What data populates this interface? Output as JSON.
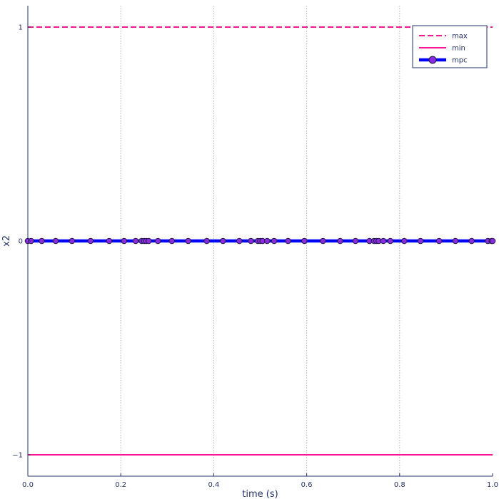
{
  "chart_data": {
    "type": "line",
    "title": "",
    "xlabel": "time (s)",
    "ylabel": "x2",
    "xlim": [
      0,
      1
    ],
    "ylim": [
      -1.1,
      1.1
    ],
    "x_ticks": [
      0,
      0.2,
      0.4,
      0.6,
      0.8,
      1.0
    ],
    "x_tick_labels": [
      "0.0",
      "0.2",
      "0.4",
      "0.6",
      "0.8",
      "1.0"
    ],
    "y_ticks": [
      -1,
      0,
      1
    ],
    "y_tick_labels": [
      "−1",
      "0",
      "1"
    ],
    "grid": {
      "x": true,
      "y": false
    },
    "legend": {
      "placement": "top-right"
    },
    "series": [
      {
        "name": "max",
        "style": "dashed",
        "color": "#ff1493",
        "x": [
          0,
          1
        ],
        "y": [
          1,
          1
        ]
      },
      {
        "name": "min",
        "style": "solid",
        "color": "#ff1493",
        "x": [
          0,
          1
        ],
        "y": [
          -1,
          -1
        ]
      },
      {
        "name": "mpc",
        "style": "solid-markers",
        "color": "#0000ff",
        "marker_color": "#8a2be2",
        "x": [
          0.0,
          0.007,
          0.03,
          0.06,
          0.095,
          0.135,
          0.175,
          0.207,
          0.232,
          0.245,
          0.25,
          0.255,
          0.26,
          0.28,
          0.31,
          0.345,
          0.385,
          0.42,
          0.455,
          0.48,
          0.495,
          0.5,
          0.505,
          0.515,
          0.53,
          0.56,
          0.595,
          0.635,
          0.672,
          0.705,
          0.735,
          0.745,
          0.75,
          0.755,
          0.765,
          0.78,
          0.81,
          0.845,
          0.885,
          0.92,
          0.955,
          0.99,
          0.998,
          1.0
        ],
        "y": [
          0,
          0,
          0,
          0,
          0,
          0,
          0,
          0,
          0,
          0,
          0,
          0,
          0,
          0,
          0,
          0,
          0,
          0,
          0,
          0,
          0,
          0,
          0,
          0,
          0,
          0,
          0,
          0,
          0,
          0,
          0,
          0,
          0,
          0,
          0,
          0,
          0,
          0,
          0,
          0,
          0,
          0,
          0,
          0
        ]
      }
    ]
  }
}
